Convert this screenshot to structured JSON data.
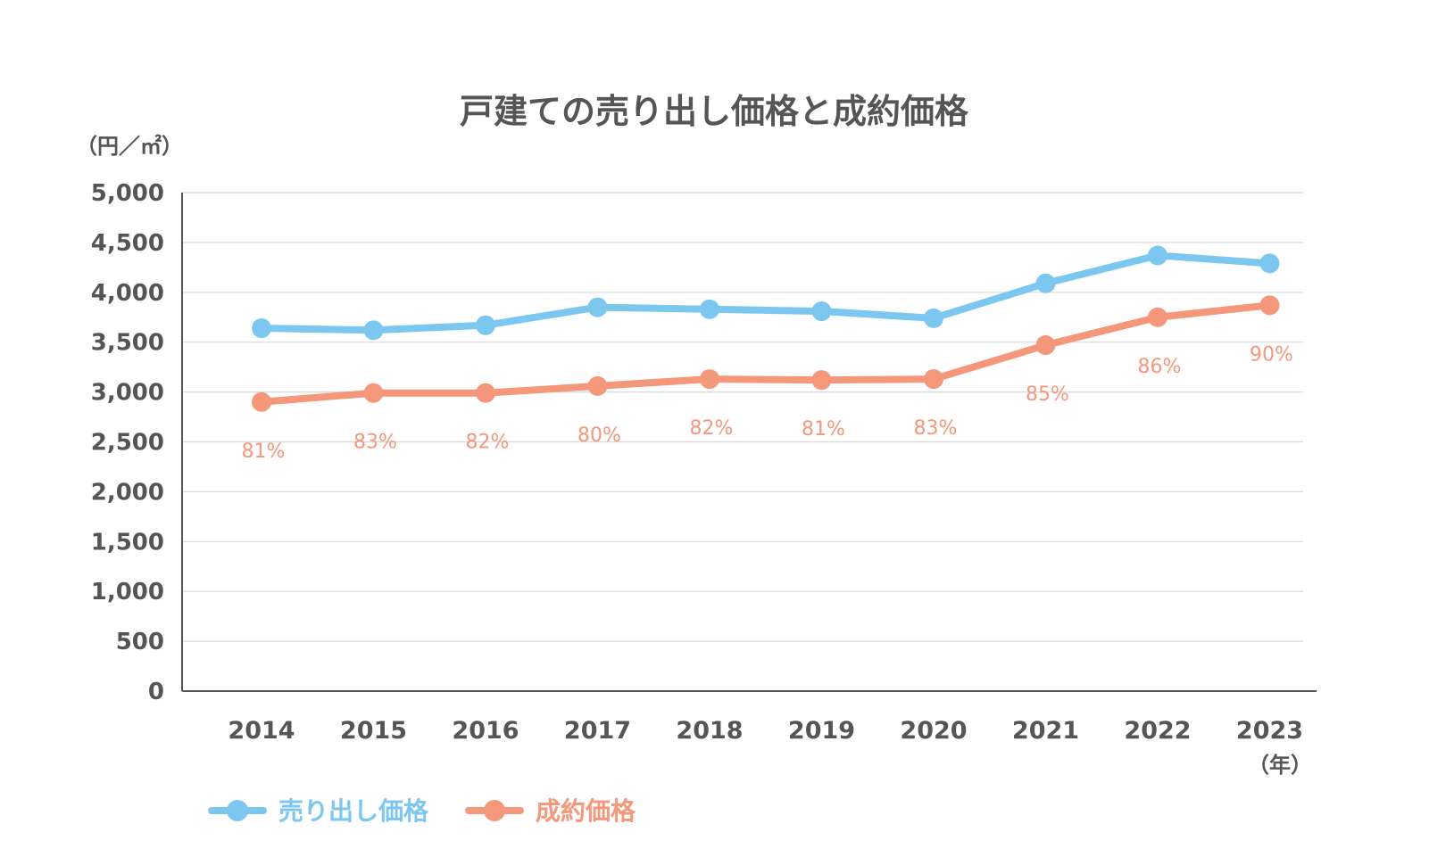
{
  "chart_data": {
    "type": "line",
    "title": "戸建ての売り出し価格と成約価格",
    "ylabel": "（円／㎡）",
    "xlabel": "（年）",
    "categories": [
      "2014",
      "2015",
      "2016",
      "2017",
      "2018",
      "2019",
      "2020",
      "2021",
      "2022",
      "2023"
    ],
    "ylim": [
      0,
      5000
    ],
    "yticks": [
      0,
      500,
      1000,
      1500,
      2000,
      2500,
      3000,
      3500,
      4000,
      4500,
      5000
    ],
    "ytick_labels": [
      "0",
      "500",
      "1,000",
      "1,500",
      "2,000",
      "2,500",
      "3,000",
      "3,500",
      "4,000",
      "4,500",
      "5,000"
    ],
    "grid": true,
    "legend_position": "bottom-left",
    "series": [
      {
        "name": "売り出し価格",
        "color": "#7cc7f0",
        "values": [
          3640,
          3620,
          3670,
          3850,
          3830,
          3810,
          3740,
          4090,
          4370,
          4290
        ]
      },
      {
        "name": "成約価格",
        "color": "#f4977b",
        "values": [
          2900,
          2990,
          2990,
          3060,
          3130,
          3120,
          3130,
          3470,
          3750,
          3870
        ],
        "data_labels": [
          "81%",
          "83%",
          "82%",
          "80%",
          "82%",
          "81%",
          "83%",
          "85%",
          "86%",
          "90%"
        ]
      }
    ]
  }
}
